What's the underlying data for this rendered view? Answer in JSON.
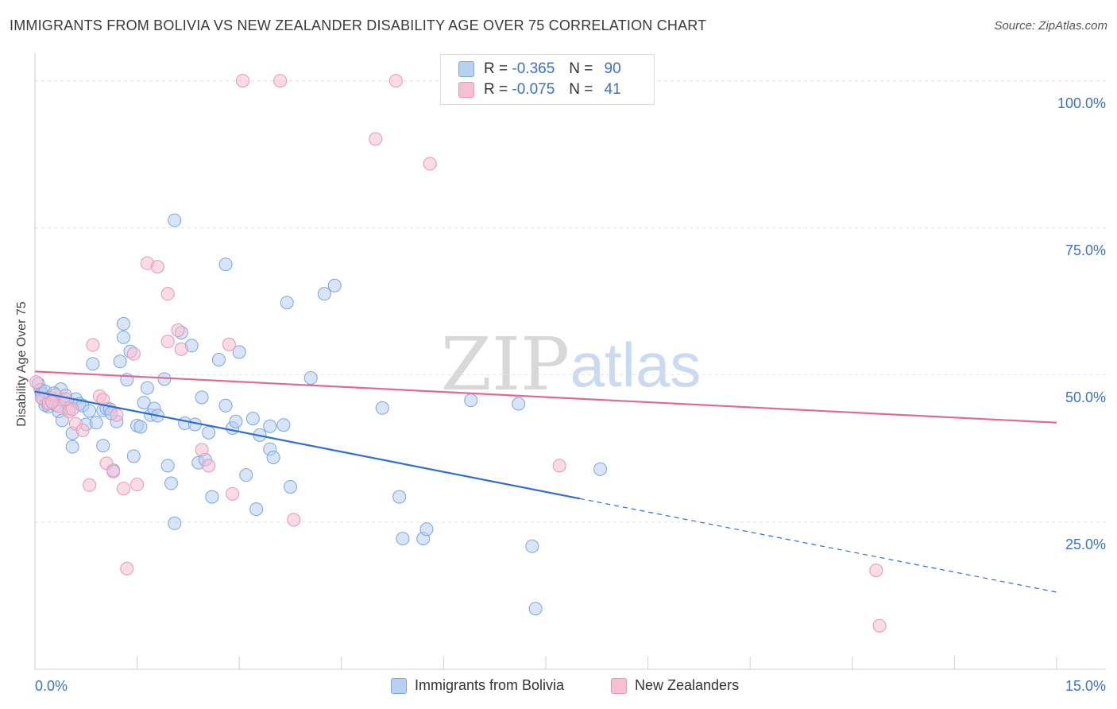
{
  "title": "IMMIGRANTS FROM BOLIVIA VS NEW ZEALANDER DISABILITY AGE OVER 75 CORRELATION CHART",
  "source": "Source: ZipAtlas.com",
  "watermark": {
    "zip": "ZIP",
    "atlas": "atlas"
  },
  "legend_top": {
    "rows": [
      {
        "r_label": "R =",
        "r_value": "-0.365",
        "n_label": "N =",
        "n_value": "90"
      },
      {
        "r_label": "R =",
        "r_value": "-0.075",
        "n_label": "N =",
        "n_value": "41"
      }
    ]
  },
  "colors": {
    "blue_fill": "#b8d0f2",
    "blue_stroke": "#7aa6e0",
    "blue_line": "#2f6fd0",
    "pink_fill": "#f7c0d2",
    "pink_stroke": "#e896b2",
    "pink_line": "#e06a94",
    "tick_text": "#3a72c9",
    "grid": "#e2e2e2"
  },
  "chart_data": {
    "type": "scatter",
    "title": "IMMIGRANTS FROM BOLIVIA VS NEW ZEALANDER DISABILITY AGE OVER 75 CORRELATION CHART",
    "xlabel": "",
    "ylabel": "Disability Age Over 75",
    "xlim": [
      0,
      15
    ],
    "ylim": [
      0,
      104
    ],
    "x_ticks": [
      0,
      1.5,
      3,
      4.5,
      6,
      7.5,
      9,
      10.5,
      12,
      13.5,
      15
    ],
    "x_tick_labels": {
      "0": "0.0%",
      "15": "15.0%"
    },
    "y_ticks": [
      25,
      50,
      75,
      100
    ],
    "y_tick_labels": [
      "25.0%",
      "50.0%",
      "75.0%",
      "100.0%"
    ],
    "grid": true,
    "legend_position": "bottom-center",
    "series": [
      {
        "name": "Immigrants from Bolivia",
        "color": "#b8d0f2",
        "points": [
          [
            0.05,
            48.5
          ],
          [
            0.08,
            47.5
          ],
          [
            0.1,
            46.8
          ],
          [
            0.12,
            45.9
          ],
          [
            0.15,
            47.2
          ],
          [
            0.18,
            45.1
          ],
          [
            0.2,
            44.6
          ],
          [
            0.22,
            46.2
          ],
          [
            0.25,
            45.4
          ],
          [
            0.3,
            44.9
          ],
          [
            0.35,
            43.8
          ],
          [
            0.38,
            47.6
          ],
          [
            0.4,
            45.8
          ],
          [
            0.45,
            46.5
          ],
          [
            0.5,
            44.3
          ],
          [
            0.55,
            40.1
          ],
          [
            0.55,
            37.8
          ],
          [
            0.6,
            45.9
          ],
          [
            0.65,
            45.1
          ],
          [
            0.7,
            44.8
          ],
          [
            0.75,
            41.6
          ],
          [
            0.8,
            43.9
          ],
          [
            0.85,
            51.9
          ],
          [
            0.9,
            41.9
          ],
          [
            1.0,
            44.0
          ],
          [
            1.0,
            38.0
          ],
          [
            1.05,
            44.3
          ],
          [
            1.1,
            44.2
          ],
          [
            1.15,
            33.8
          ],
          [
            1.2,
            42.1
          ],
          [
            1.25,
            52.3
          ],
          [
            1.3,
            58.7
          ],
          [
            1.3,
            56.4
          ],
          [
            1.35,
            49.2
          ],
          [
            1.4,
            54.0
          ],
          [
            1.45,
            36.2
          ],
          [
            1.5,
            41.4
          ],
          [
            1.55,
            41.2
          ],
          [
            1.6,
            45.3
          ],
          [
            1.65,
            47.8
          ],
          [
            1.7,
            43.2
          ],
          [
            1.75,
            44.3
          ],
          [
            1.8,
            43.1
          ],
          [
            1.9,
            49.3
          ],
          [
            1.95,
            34.6
          ],
          [
            2.0,
            31.6
          ],
          [
            2.05,
            24.8
          ],
          [
            2.05,
            76.3
          ],
          [
            2.15,
            57.2
          ],
          [
            2.2,
            41.8
          ],
          [
            2.3,
            55.0
          ],
          [
            2.35,
            41.6
          ],
          [
            2.4,
            35.1
          ],
          [
            2.45,
            46.2
          ],
          [
            2.5,
            35.6
          ],
          [
            2.55,
            40.2
          ],
          [
            2.6,
            29.3
          ],
          [
            2.7,
            52.6
          ],
          [
            2.8,
            44.8
          ],
          [
            2.8,
            68.8
          ],
          [
            2.9,
            41.0
          ],
          [
            2.95,
            42.1
          ],
          [
            3.0,
            53.9
          ],
          [
            3.1,
            33.0
          ],
          [
            3.2,
            42.6
          ],
          [
            3.25,
            27.2
          ],
          [
            3.3,
            39.8
          ],
          [
            3.45,
            37.4
          ],
          [
            3.45,
            41.3
          ],
          [
            3.5,
            36.0
          ],
          [
            3.65,
            41.5
          ],
          [
            3.7,
            62.3
          ],
          [
            3.75,
            31.0
          ],
          [
            4.05,
            49.5
          ],
          [
            4.25,
            63.8
          ],
          [
            4.4,
            65.2
          ],
          [
            5.1,
            44.4
          ],
          [
            5.35,
            29.3
          ],
          [
            5.4,
            22.2
          ],
          [
            5.7,
            22.2
          ],
          [
            5.75,
            23.8
          ],
          [
            6.4,
            45.7
          ],
          [
            7.1,
            45.1
          ],
          [
            7.3,
            20.9
          ],
          [
            7.35,
            10.3
          ],
          [
            8.3,
            34.0
          ],
          [
            0.4,
            42.3
          ],
          [
            0.28,
            46.9
          ],
          [
            0.15,
            44.9
          ],
          [
            1.12,
            43.5
          ]
        ]
      },
      {
        "name": "New Zealanders",
        "color": "#f7c0d2",
        "points": [
          [
            0.02,
            48.8
          ],
          [
            0.1,
            46.1
          ],
          [
            0.2,
            45.2
          ],
          [
            0.3,
            46.6
          ],
          [
            0.35,
            44.7
          ],
          [
            0.45,
            45.9
          ],
          [
            0.5,
            43.8
          ],
          [
            0.6,
            41.7
          ],
          [
            0.7,
            40.6
          ],
          [
            0.8,
            31.3
          ],
          [
            0.85,
            55.1
          ],
          [
            0.95,
            46.4
          ],
          [
            1.0,
            45.8
          ],
          [
            1.05,
            35.0
          ],
          [
            1.15,
            33.6
          ],
          [
            1.2,
            43.2
          ],
          [
            1.3,
            30.7
          ],
          [
            1.35,
            17.1
          ],
          [
            1.45,
            53.6
          ],
          [
            1.5,
            31.4
          ],
          [
            1.65,
            69.0
          ],
          [
            1.8,
            68.4
          ],
          [
            1.95,
            63.8
          ],
          [
            1.95,
            55.7
          ],
          [
            2.1,
            57.6
          ],
          [
            2.15,
            54.4
          ],
          [
            2.45,
            37.3
          ],
          [
            2.55,
            34.6
          ],
          [
            2.85,
            55.2
          ],
          [
            2.9,
            29.8
          ],
          [
            3.05,
            100.0
          ],
          [
            3.6,
            100.0
          ],
          [
            3.8,
            25.4
          ],
          [
            5.3,
            100.0
          ],
          [
            5.0,
            90.1
          ],
          [
            5.8,
            85.9
          ],
          [
            7.7,
            34.6
          ],
          [
            12.35,
            16.8
          ],
          [
            12.4,
            7.4
          ],
          [
            0.55,
            44.2
          ],
          [
            0.25,
            45.4
          ]
        ]
      }
    ],
    "trend_lines": [
      {
        "series": "Immigrants from Bolivia",
        "solid": [
          [
            0,
            47.2
          ],
          [
            8.0,
            29.0
          ]
        ],
        "dashed": [
          [
            8.0,
            29.0
          ],
          [
            15.0,
            13.1
          ]
        ]
      },
      {
        "series": "New Zealanders",
        "solid": [
          [
            0,
            50.6
          ],
          [
            15.0,
            41.9
          ]
        ]
      }
    ]
  },
  "bottom_legend": [
    {
      "label": "Immigrants from Bolivia"
    },
    {
      "label": "New Zealanders"
    }
  ]
}
